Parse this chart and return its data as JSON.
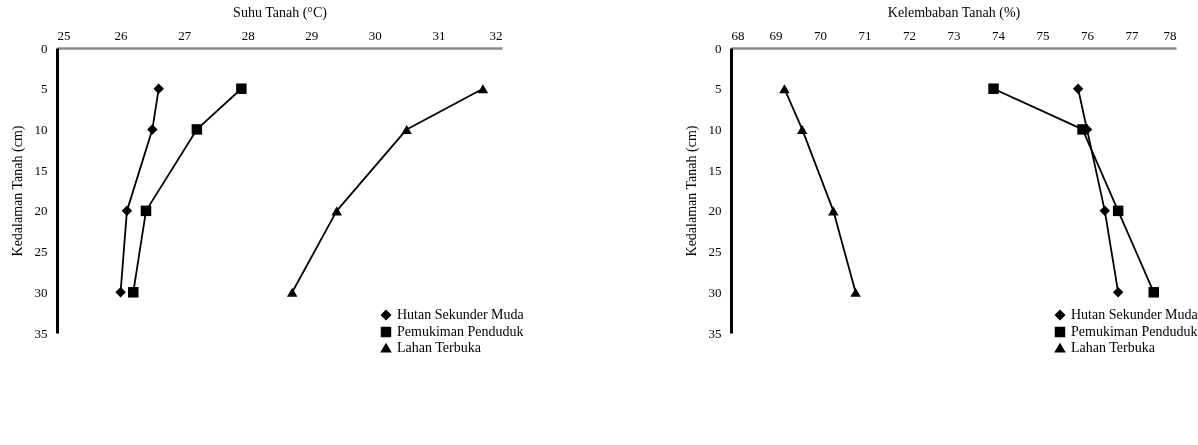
{
  "chart_data": [
    {
      "type": "line",
      "xlabel": "Suhu Tanah (°C)",
      "ylabel": "Kedalaman Tanah (cm)",
      "xlim": [
        25,
        32
      ],
      "xticks": [
        25,
        26,
        27,
        28,
        29,
        30,
        31,
        32
      ],
      "ylim": [
        35,
        0
      ],
      "yticks": [
        0,
        5,
        10,
        15,
        20,
        25,
        30,
        35
      ],
      "legend": "bottom right",
      "series": [
        {
          "name": "Hutan Sekunder Muda",
          "color": "#000000",
          "marker": "diamond",
          "x": [
            26.6,
            26.5,
            26.1,
            26.0
          ],
          "values": [
            5,
            10,
            20,
            30
          ]
        },
        {
          "name": "Pemukiman Penduduk",
          "color": "#000000",
          "marker": "square",
          "x": [
            27.9,
            27.2,
            26.4,
            26.2
          ],
          "values": [
            5,
            10,
            20,
            30
          ]
        },
        {
          "name": "Lahan Terbuka",
          "color": "#000000",
          "marker": "triangle",
          "x": [
            31.7,
            30.5,
            29.4,
            28.7
          ],
          "values": [
            5,
            10,
            20,
            30
          ]
        }
      ]
    },
    {
      "type": "line",
      "xlabel": "Kelembaban Tanah (%)",
      "ylabel": "Kedalaman Tanah (cm)",
      "xlim": [
        68,
        78
      ],
      "xticks": [
        68,
        69,
        70,
        71,
        72,
        73,
        74,
        75,
        76,
        77,
        78
      ],
      "ylim": [
        35,
        0
      ],
      "yticks": [
        0,
        5,
        10,
        15,
        20,
        25,
        30,
        35
      ],
      "legend": "bottom right",
      "series": [
        {
          "name": "Hutan Sekunder Muda",
          "color": "#000000",
          "marker": "diamond",
          "x": [
            75.8,
            76.0,
            76.4,
            76.7
          ],
          "values": [
            5,
            10,
            20,
            30
          ]
        },
        {
          "name": "Pemukiman Penduduk",
          "color": "#000000",
          "marker": "square",
          "x": [
            73.9,
            75.9,
            76.7,
            77.5
          ],
          "values": [
            5,
            10,
            20,
            30
          ]
        },
        {
          "name": "Lahan Terbuka",
          "color": "#000000",
          "marker": "triangle",
          "x": [
            69.2,
            69.6,
            70.3,
            70.8
          ],
          "values": [
            5,
            10,
            20,
            30
          ]
        }
      ]
    }
  ]
}
